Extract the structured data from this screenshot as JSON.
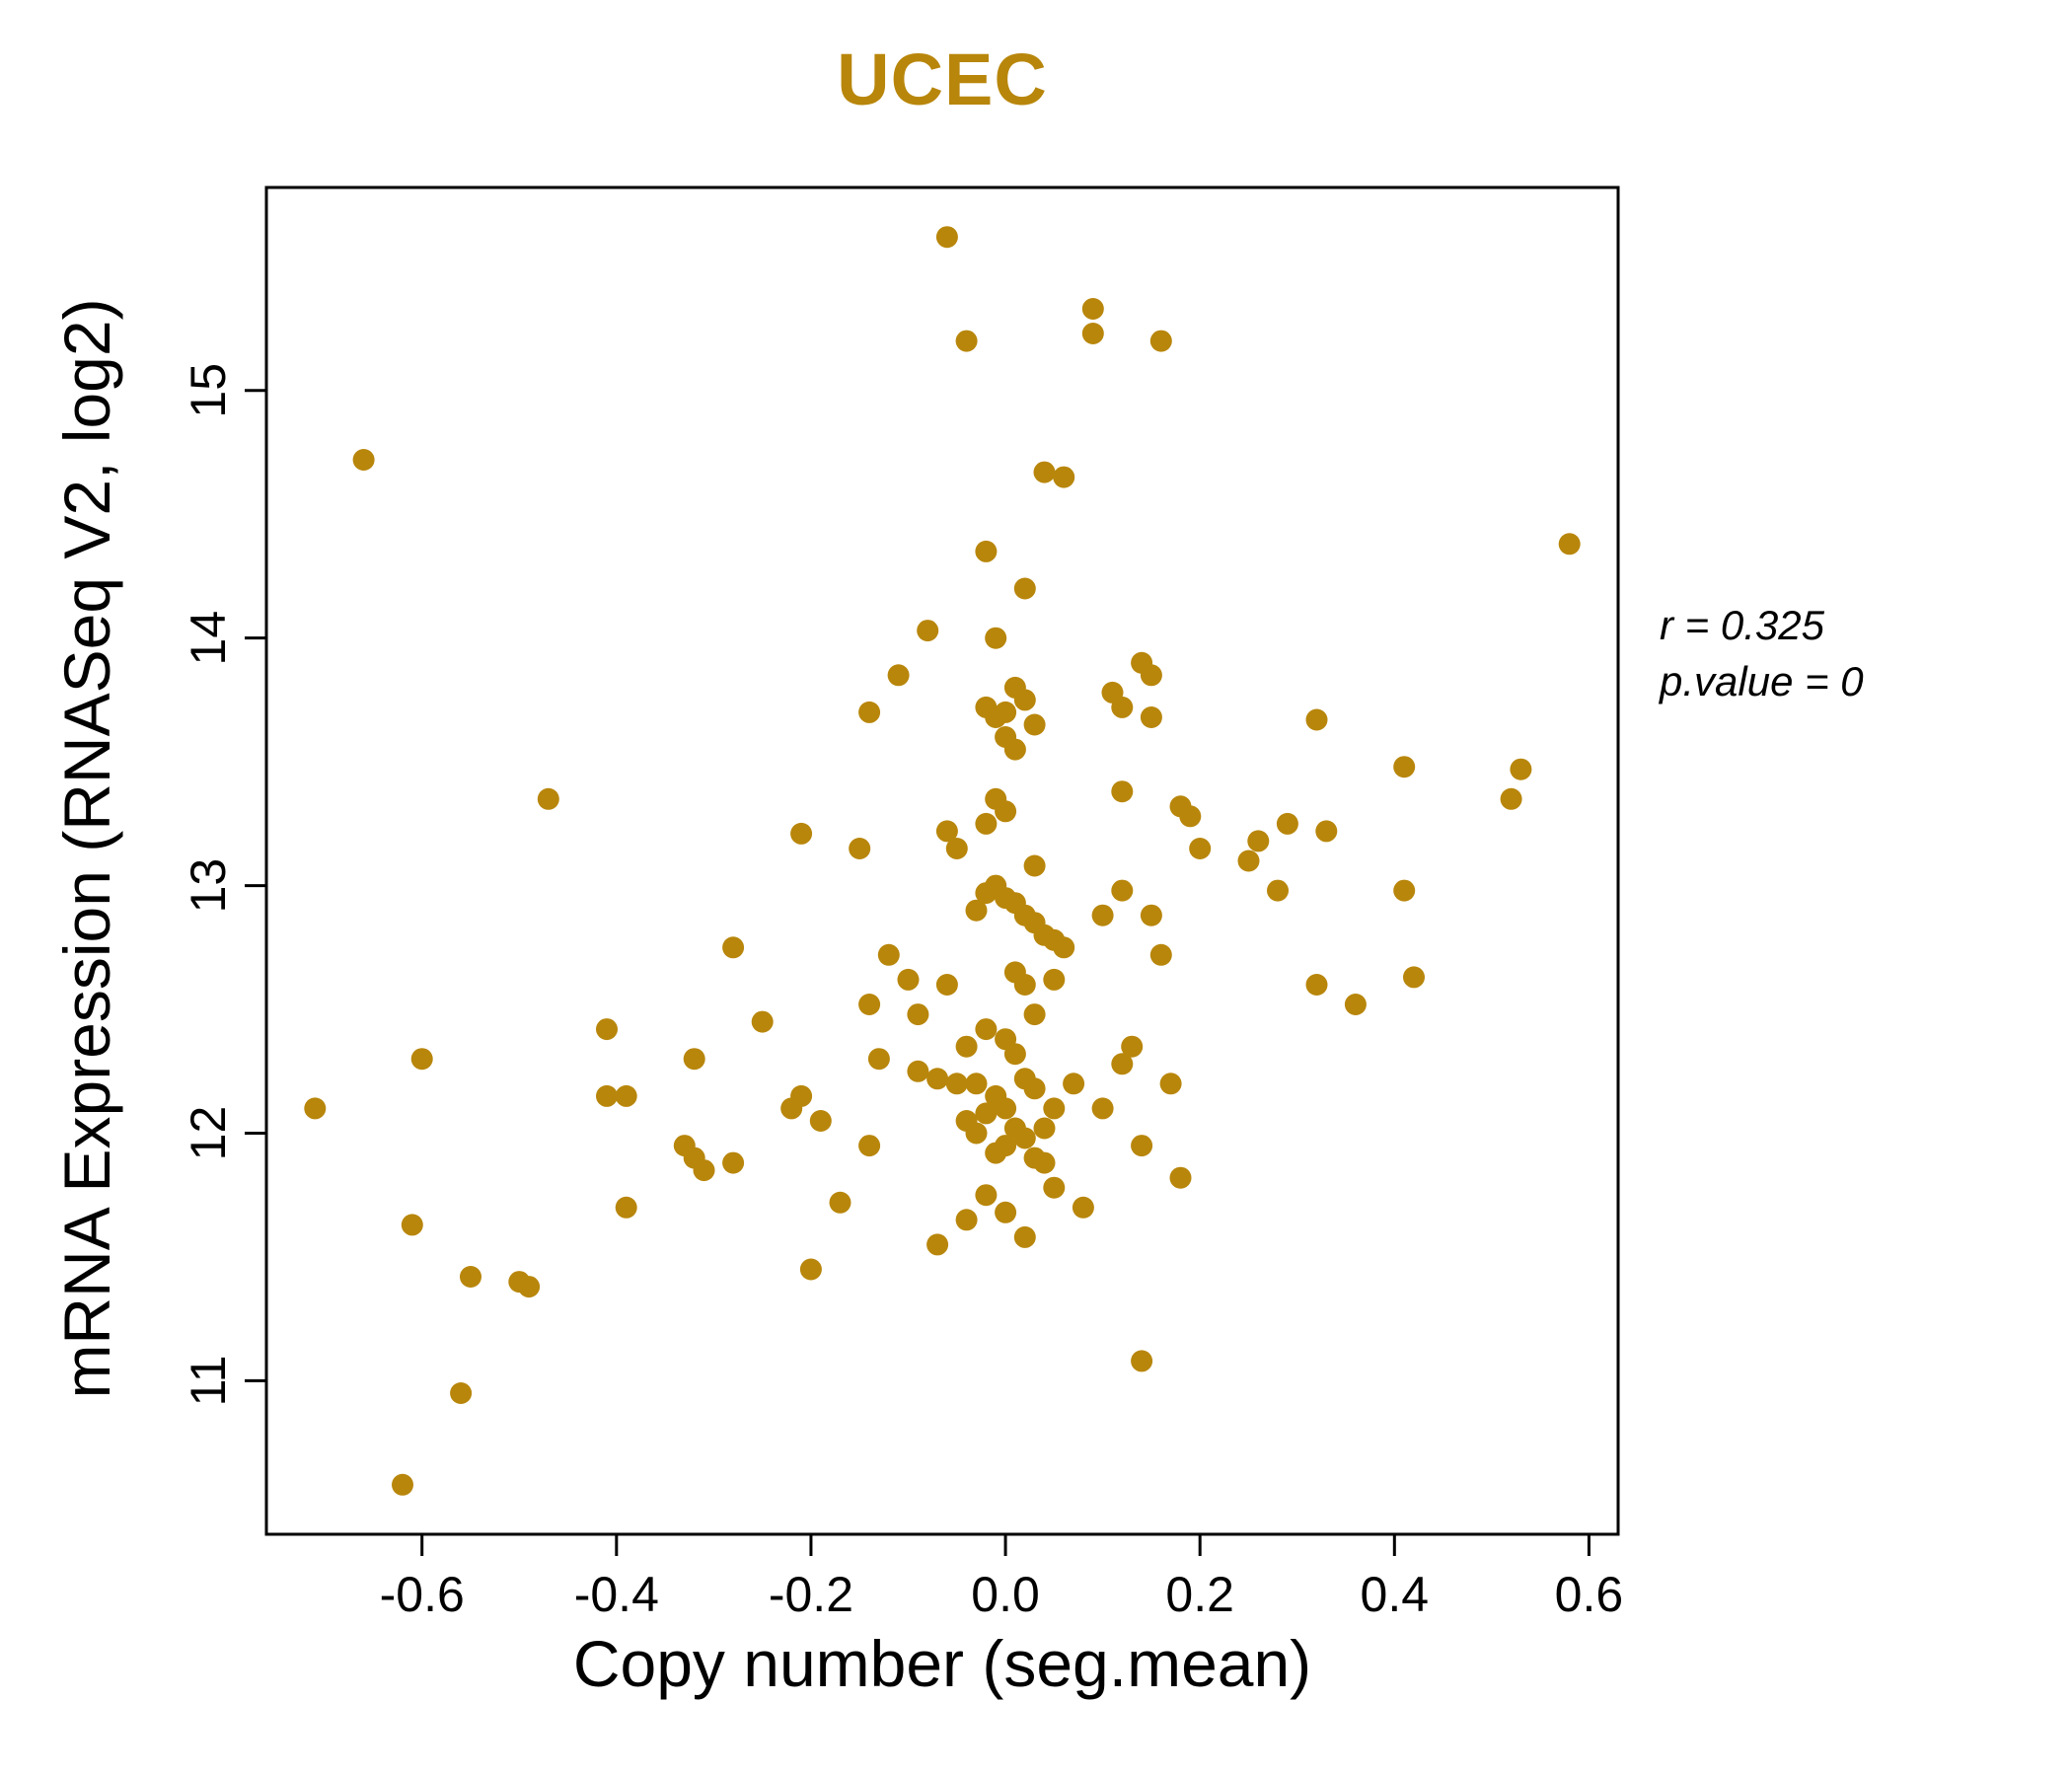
{
  "chart_data": {
    "type": "scatter",
    "title": "UCEC",
    "xlabel": "Copy number (seg.mean)",
    "ylabel": "mRNA Expression (RNASeq V2, log2)",
    "accent_color": "#B8860B",
    "point_color": "#B8860B",
    "grid": false,
    "legend": null,
    "xlim": [
      -0.76,
      0.63
    ],
    "ylim": [
      10.38,
      15.82
    ],
    "xticks": [
      {
        "value": -0.6,
        "label": "-0.6"
      },
      {
        "value": -0.4,
        "label": "-0.4"
      },
      {
        "value": -0.2,
        "label": "-0.2"
      },
      {
        "value": 0.0,
        "label": "0.0"
      },
      {
        "value": 0.2,
        "label": "0.2"
      },
      {
        "value": 0.4,
        "label": "0.4"
      },
      {
        "value": 0.6,
        "label": "0.6"
      }
    ],
    "yticks": [
      {
        "value": 11,
        "label": "11"
      },
      {
        "value": 12,
        "label": "12"
      },
      {
        "value": 13,
        "label": "13"
      },
      {
        "value": 14,
        "label": "14"
      },
      {
        "value": 15,
        "label": "15"
      }
    ],
    "annotation": {
      "r": "r = 0.325",
      "p": "p.value = 0"
    },
    "points": [
      [
        -0.71,
        12.1
      ],
      [
        -0.66,
        14.72
      ],
      [
        -0.62,
        10.58
      ],
      [
        -0.61,
        11.63
      ],
      [
        -0.6,
        12.3
      ],
      [
        -0.56,
        10.95
      ],
      [
        -0.55,
        11.42
      ],
      [
        -0.5,
        11.4
      ],
      [
        -0.49,
        11.38
      ],
      [
        -0.47,
        13.35
      ],
      [
        -0.41,
        12.42
      ],
      [
        -0.41,
        12.15
      ],
      [
        -0.39,
        12.15
      ],
      [
        -0.39,
        11.7
      ],
      [
        -0.33,
        11.95
      ],
      [
        -0.32,
        12.3
      ],
      [
        -0.32,
        11.9
      ],
      [
        -0.31,
        11.85
      ],
      [
        -0.28,
        12.75
      ],
      [
        -0.28,
        11.88
      ],
      [
        -0.25,
        12.45
      ],
      [
        -0.22,
        12.1
      ],
      [
        -0.21,
        13.21
      ],
      [
        -0.21,
        12.15
      ],
      [
        -0.2,
        11.45
      ],
      [
        -0.19,
        12.05
      ],
      [
        -0.17,
        11.72
      ],
      [
        -0.15,
        13.15
      ],
      [
        -0.14,
        13.7
      ],
      [
        -0.14,
        12.52
      ],
      [
        -0.14,
        11.95
      ],
      [
        -0.13,
        12.3
      ],
      [
        -0.12,
        12.72
      ],
      [
        -0.11,
        13.85
      ],
      [
        -0.1,
        12.62
      ],
      [
        -0.09,
        12.48
      ],
      [
        -0.09,
        12.25
      ],
      [
        -0.08,
        14.03
      ],
      [
        -0.07,
        12.22
      ],
      [
        -0.07,
        11.55
      ],
      [
        -0.06,
        15.62
      ],
      [
        -0.06,
        13.22
      ],
      [
        -0.06,
        12.6
      ],
      [
        -0.05,
        13.15
      ],
      [
        -0.05,
        12.2
      ],
      [
        -0.04,
        15.2
      ],
      [
        -0.04,
        12.35
      ],
      [
        -0.04,
        12.05
      ],
      [
        -0.04,
        11.65
      ],
      [
        -0.03,
        12.9
      ],
      [
        -0.03,
        12.2
      ],
      [
        -0.03,
        12.0
      ],
      [
        -0.02,
        14.35
      ],
      [
        -0.02,
        13.72
      ],
      [
        -0.02,
        13.25
      ],
      [
        -0.02,
        12.97
      ],
      [
        -0.02,
        12.42
      ],
      [
        -0.02,
        12.08
      ],
      [
        -0.02,
        11.75
      ],
      [
        -0.01,
        14.0
      ],
      [
        -0.01,
        13.68
      ],
      [
        -0.01,
        13.35
      ],
      [
        -0.01,
        13.0
      ],
      [
        -0.01,
        12.15
      ],
      [
        -0.01,
        11.92
      ],
      [
        0.0,
        13.7
      ],
      [
        0.0,
        13.6
      ],
      [
        0.0,
        13.3
      ],
      [
        0.0,
        12.95
      ],
      [
        0.0,
        12.38
      ],
      [
        0.0,
        12.1
      ],
      [
        0.0,
        11.95
      ],
      [
        0.0,
        11.68
      ],
      [
        0.01,
        13.8
      ],
      [
        0.01,
        13.55
      ],
      [
        0.01,
        12.93
      ],
      [
        0.01,
        12.65
      ],
      [
        0.01,
        12.32
      ],
      [
        0.01,
        12.02
      ],
      [
        0.02,
        14.2
      ],
      [
        0.02,
        13.75
      ],
      [
        0.02,
        12.88
      ],
      [
        0.02,
        12.6
      ],
      [
        0.02,
        12.22
      ],
      [
        0.02,
        11.98
      ],
      [
        0.02,
        11.58
      ],
      [
        0.03,
        13.65
      ],
      [
        0.03,
        13.08
      ],
      [
        0.03,
        12.85
      ],
      [
        0.03,
        12.48
      ],
      [
        0.03,
        12.18
      ],
      [
        0.03,
        11.9
      ],
      [
        0.04,
        14.67
      ],
      [
        0.04,
        12.8
      ],
      [
        0.04,
        12.02
      ],
      [
        0.04,
        11.88
      ],
      [
        0.05,
        12.78
      ],
      [
        0.05,
        12.62
      ],
      [
        0.05,
        12.1
      ],
      [
        0.05,
        11.78
      ],
      [
        0.06,
        14.65
      ],
      [
        0.06,
        12.75
      ],
      [
        0.07,
        12.2
      ],
      [
        0.08,
        11.7
      ],
      [
        0.09,
        15.33
      ],
      [
        0.09,
        15.23
      ],
      [
        0.1,
        12.88
      ],
      [
        0.1,
        12.1
      ],
      [
        0.11,
        13.78
      ],
      [
        0.12,
        13.72
      ],
      [
        0.12,
        13.38
      ],
      [
        0.12,
        12.98
      ],
      [
        0.12,
        12.28
      ],
      [
        0.13,
        12.35
      ],
      [
        0.14,
        13.9
      ],
      [
        0.14,
        11.95
      ],
      [
        0.14,
        11.08
      ],
      [
        0.15,
        13.85
      ],
      [
        0.15,
        13.68
      ],
      [
        0.15,
        12.88
      ],
      [
        0.16,
        15.2
      ],
      [
        0.16,
        12.72
      ],
      [
        0.17,
        12.2
      ],
      [
        0.18,
        13.32
      ],
      [
        0.18,
        11.82
      ],
      [
        0.19,
        13.28
      ],
      [
        0.2,
        13.15
      ],
      [
        0.25,
        13.1
      ],
      [
        0.26,
        13.18
      ],
      [
        0.28,
        12.98
      ],
      [
        0.29,
        13.25
      ],
      [
        0.32,
        13.67
      ],
      [
        0.32,
        12.6
      ],
      [
        0.33,
        13.22
      ],
      [
        0.36,
        12.52
      ],
      [
        0.41,
        13.48
      ],
      [
        0.41,
        12.98
      ],
      [
        0.42,
        12.63
      ],
      [
        0.52,
        13.35
      ],
      [
        0.53,
        13.47
      ],
      [
        0.58,
        14.38
      ]
    ]
  }
}
